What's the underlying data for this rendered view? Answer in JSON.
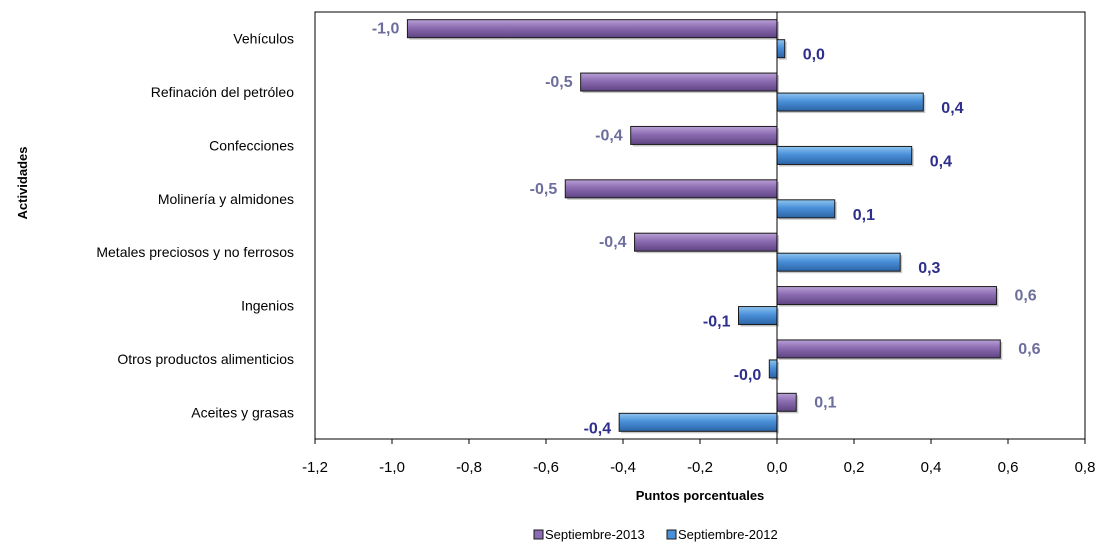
{
  "chart_data": {
    "type": "bar",
    "orientation": "horizontal",
    "categories": [
      "Vehículos",
      "Refinación del petróleo",
      "Confecciones",
      "Molinería y almidones",
      "Metales preciosos  y no ferrosos",
      "Ingenios",
      "Otros productos alimenticios",
      "Aceites y grasas"
    ],
    "series": [
      {
        "name": "Septiembre-2013",
        "values": [
          -0.96,
          -0.51,
          -0.38,
          -0.55,
          -0.37,
          0.57,
          0.58,
          0.05
        ],
        "labels": [
          "-1,0",
          "-0,5",
          "-0,4",
          "-0,5",
          "-0,4",
          "0,6",
          "0,6",
          "0,1"
        ],
        "color": "#8B6BB1",
        "label_color": "#6E6E9E"
      },
      {
        "name": "Septiembre-2012",
        "values": [
          0.02,
          0.38,
          0.35,
          0.15,
          0.32,
          -0.1,
          -0.02,
          -0.41
        ],
        "labels": [
          "0,0",
          "0,4",
          "0,4",
          "0,1",
          "0,3",
          "-0,1",
          "-0,0",
          "-0,4"
        ],
        "color": "#4A90D9",
        "label_color": "#2E2E8C"
      }
    ],
    "xlim": [
      -1.2,
      0.8
    ],
    "xticks": [
      -1.2,
      -1.0,
      -0.8,
      -0.6,
      -0.4,
      -0.2,
      0.0,
      0.2,
      0.4,
      0.6,
      0.8
    ],
    "xtick_labels": [
      "-1,2",
      "-1,0",
      "-0,8",
      "-0,6",
      "-0,4",
      "-0,2",
      "0,0",
      "0,2",
      "0,4",
      "0,6",
      "0,8"
    ],
    "xlabel": "Puntos porcentuales",
    "ylabel": "Actividades",
    "grid": false,
    "legend_position": "bottom"
  }
}
